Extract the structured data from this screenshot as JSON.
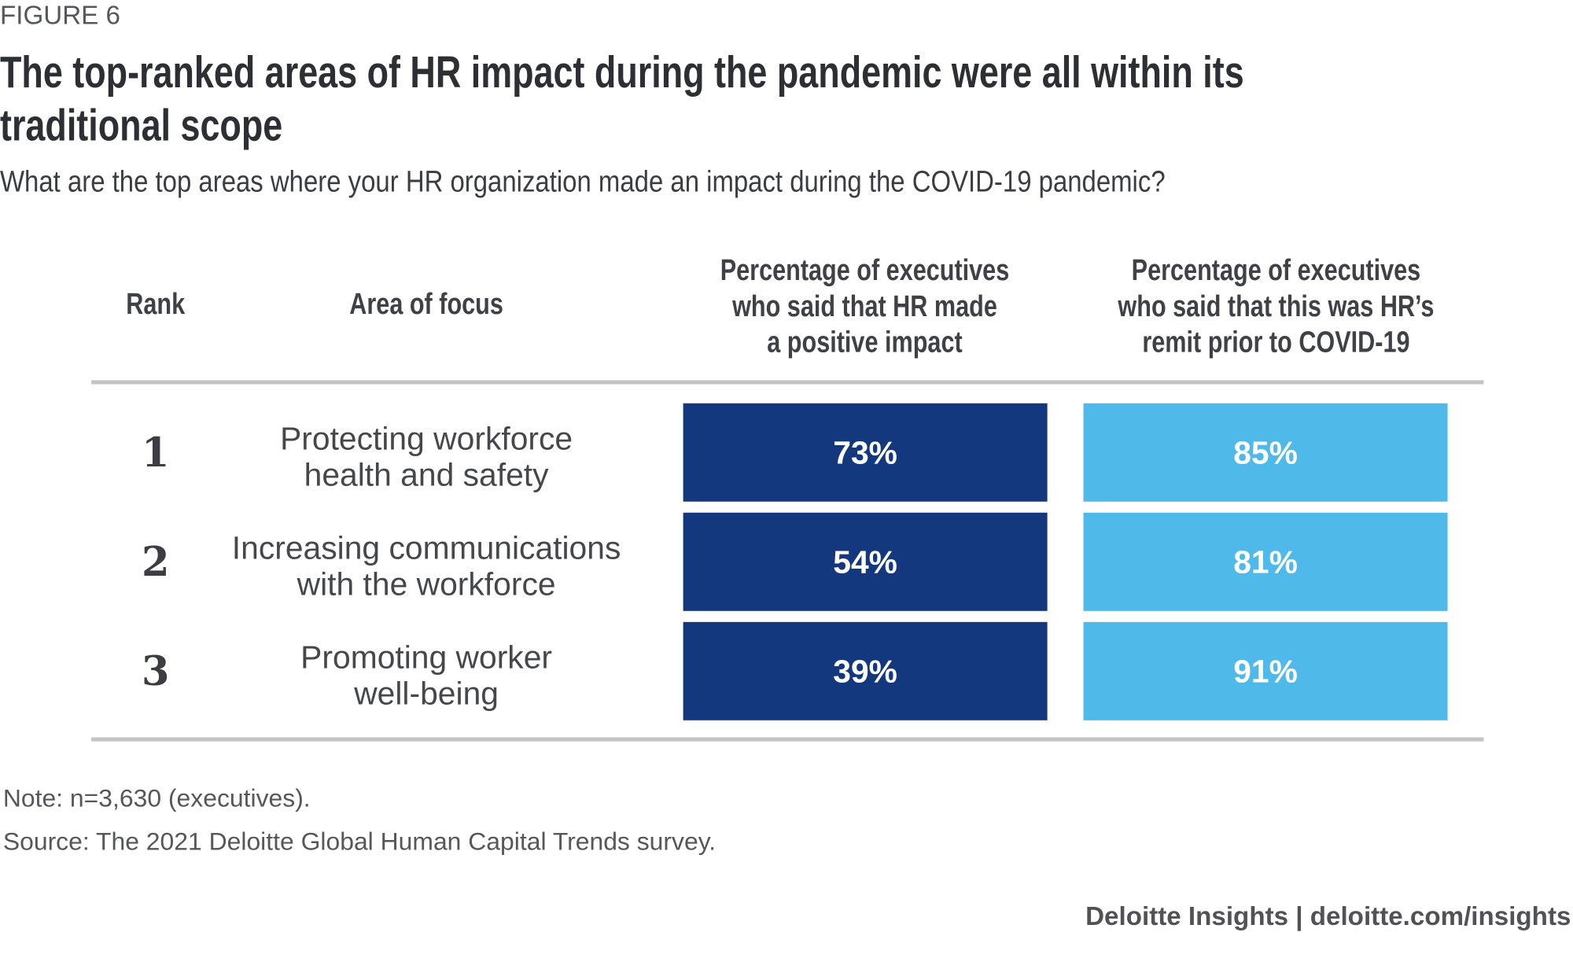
{
  "figure_label": "FIGURE 6",
  "title_lines": [
    "The top-ranked areas of HR impact during the pandemic were all within its",
    "traditional scope"
  ],
  "subtitle": "What are the top areas where your HR organization made an impact during the COVID-19 pandemic?",
  "colors": {
    "positive_impact": "#13387e",
    "remit_prior": "#4fb9e9"
  },
  "chart_data": {
    "type": "table",
    "columns": [
      "Rank",
      "Area of focus",
      [
        "Percentage of executives",
        "who said that HR made",
        "a positive impact"
      ],
      [
        "Percentage of executives",
        "who said that this was HR’s",
        "remit prior to COVID-19"
      ]
    ],
    "rows": [
      {
        "rank": "1",
        "area": [
          "Protecting workforce",
          "health and safety"
        ],
        "positive_impact": "73%",
        "remit_prior": "85%"
      },
      {
        "rank": "2",
        "area": [
          "Increasing communications",
          "with the workforce"
        ],
        "positive_impact": "54%",
        "remit_prior": "81%"
      },
      {
        "rank": "3",
        "area": [
          "Promoting worker",
          "well-being"
        ],
        "positive_impact": "39%",
        "remit_prior": "91%"
      }
    ]
  },
  "note": "Note: n=3,630 (executives).",
  "source": "Source: The 2021 Deloitte Global Human Capital Trends survey.",
  "footer": "Deloitte Insights | deloitte.com/insights"
}
